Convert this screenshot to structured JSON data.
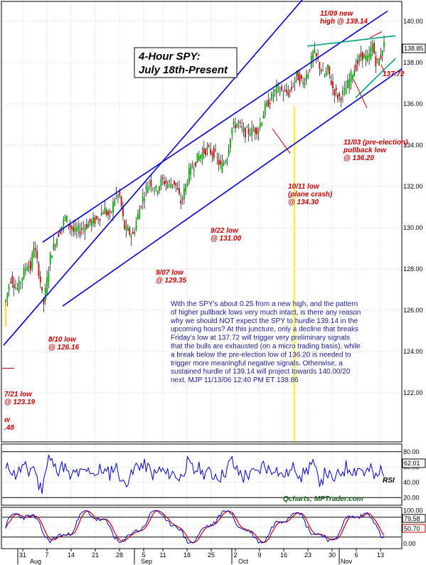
{
  "chart_data": {
    "title": [
      "4-Hour SPY:",
      "July 18th-Present"
    ],
    "main": {
      "type": "candlestick",
      "ylim": [
        120.5,
        140.5
      ],
      "yticks": [
        "140.00",
        "138.00",
        "136.00",
        "134.00",
        "132.00",
        "130.00",
        "128.00",
        "126.00",
        "124.00",
        "122.00"
      ],
      "last_price": "138.85",
      "annotations": [
        {
          "id": "high",
          "lines": [
            "11/09 new",
            "high @ 139.14"
          ]
        },
        {
          "id": "fri",
          "lines": [
            "137.72"
          ]
        },
        {
          "id": "preelec",
          "lines": [
            "11/03 (pre-election)",
            "pullback low",
            "@ 136.20"
          ]
        },
        {
          "id": "crash",
          "lines": [
            "10/11 low",
            "(plane crash)",
            "@ 134.30"
          ]
        },
        {
          "id": "sep22",
          "lines": [
            "9/22 low",
            "@ 131.00"
          ]
        },
        {
          "id": "sep07",
          "lines": [
            "9/07 low",
            "@ 129.35"
          ]
        },
        {
          "id": "aug10",
          "lines": [
            "8/10 low",
            "@ 126.16"
          ]
        },
        {
          "id": "jul21",
          "lines": [
            "7/21 low",
            "@ 123.19"
          ]
        },
        {
          "id": "stub",
          "lines": [
            "w",
            ".48"
          ]
        }
      ],
      "commentary": [
        "With the SPY's about 0.25 from a new high, and the pattern",
        "of higher pullback lows very much intact, is there any reason",
        "why we should NOT expect the SPY to hurdle 139.14 in the",
        "upcoming hours? At this juncture, only a decline that breaks",
        "Friday's low at 137.72 will trigger very preliminary signals",
        "that the bulls are exhausted (on a micro trading basis), while",
        "a break below the pre-election low of 136.20 is needed to",
        "trigger more meaningful negative signals. Otherwise, a",
        "sustained hurdle of 139.14 will project towards 140.00/20",
        "next.  MJP  11/13/06 12:40 PM ET  138.86"
      ]
    },
    "rsi": {
      "ylim": [
        10,
        90
      ],
      "yticks": [
        "80.00",
        "60.00",
        "40.00",
        "20.00"
      ],
      "last_value": "62.01",
      "label": "RSI",
      "brand": "Qcharts; MPTrader.com"
    },
    "stoch": {
      "ylim": [
        -15,
        110
      ],
      "yticks": [
        "100.00",
        "50.00",
        "0.00"
      ],
      "last_values": [
        "79.58",
        "50.70"
      ]
    },
    "x_axis": {
      "day_ticks": [
        "31",
        "7",
        "14",
        "21",
        "28",
        "5",
        "11",
        "18",
        "25",
        "2",
        "9",
        "16",
        "23",
        "30",
        "6",
        "13"
      ],
      "months": [
        "Aug",
        "Sep",
        "Oct",
        "Nov"
      ]
    },
    "colors": {
      "up": "#00aa00",
      "down": "#cc0000",
      "channel": "#0000cc",
      "rsi": "#0000cc",
      "stoch_k": "#0000cc",
      "stoch_d": "#cc0000",
      "wedge": "#00a080",
      "vline": "#ffff00"
    }
  }
}
